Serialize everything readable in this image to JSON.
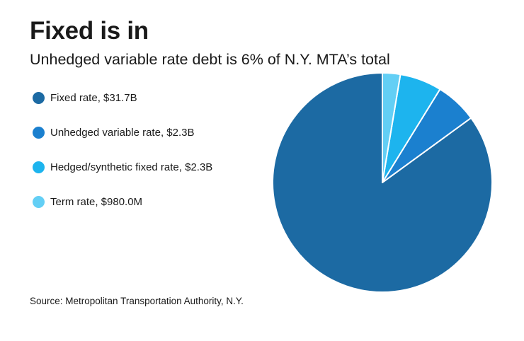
{
  "title": "Fixed is in",
  "subtitle": "Unhedged variable rate debt is 6% of N.Y. MTA’s total",
  "source": "Source: Metropolitan Transportation Authority, N.Y.",
  "chart_data": {
    "type": "pie",
    "legend_position": "left",
    "slices": [
      {
        "label": "Fixed rate, $31.7B",
        "value": 31.7,
        "color": "#1c6aa3"
      },
      {
        "label": "Unhedged variable rate, $2.3B",
        "value": 2.3,
        "color": "#1b80cf"
      },
      {
        "label": "Hedged/synthetic fixed rate, $2.3B",
        "value": 2.3,
        "color": "#1db4ee"
      },
      {
        "label": "Term rate, $980.0M",
        "value": 0.98,
        "color": "#63cff5"
      }
    ]
  }
}
